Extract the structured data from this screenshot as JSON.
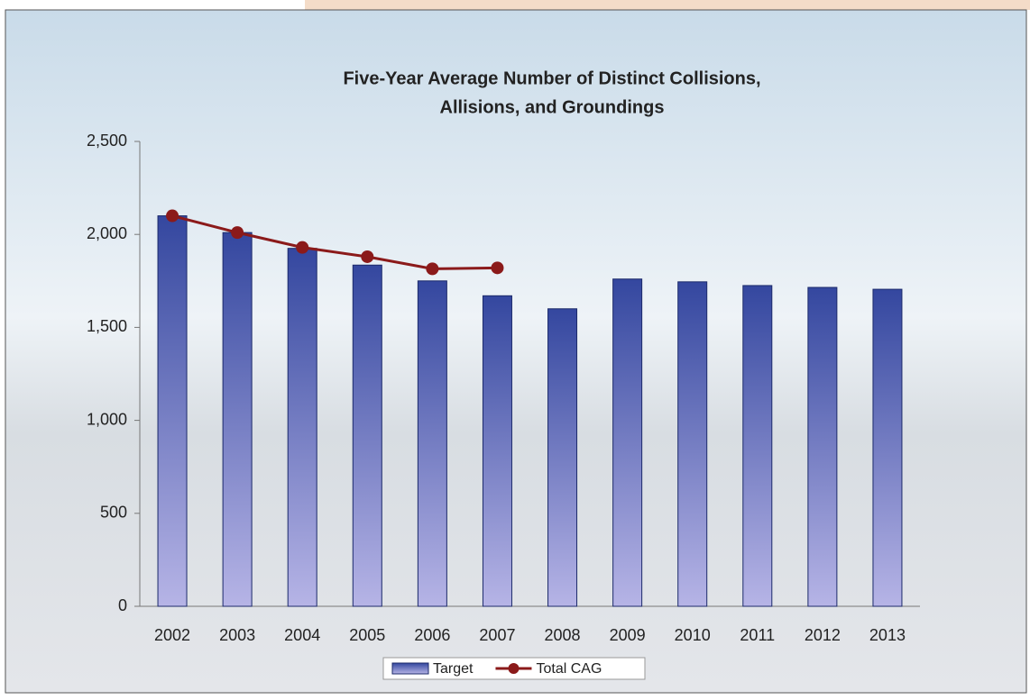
{
  "chart_data": {
    "type": "bar",
    "title": [
      "Five-Year Average Number of Distinct Collisions,",
      "Allisions, and Groundings"
    ],
    "categories": [
      "2002",
      "2003",
      "2004",
      "2005",
      "2006",
      "2007",
      "2008",
      "2009",
      "2010",
      "2011",
      "2012",
      "2013"
    ],
    "series": [
      {
        "name": "Target",
        "type": "bar",
        "color": "#34479f",
        "values": [
          2100,
          2010,
          1925,
          1835,
          1750,
          1670,
          1600,
          1760,
          1745,
          1725,
          1715,
          1705
        ]
      },
      {
        "name": "Total CAG",
        "type": "line",
        "color": "#8b1a1a",
        "values": [
          2100,
          2010,
          1930,
          1880,
          1815,
          1820,
          null,
          null,
          null,
          null,
          null,
          null
        ]
      }
    ],
    "ylim": [
      0,
      2500
    ],
    "yticks": [
      0,
      500,
      {
        "value": 1000,
        "label": "1,000"
      },
      {
        "value": 1500,
        "label": "1,500"
      },
      {
        "value": 2000,
        "label": "2,000"
      },
      {
        "value": 2500,
        "label": "2,500"
      }
    ],
    "legend": "bottom"
  }
}
